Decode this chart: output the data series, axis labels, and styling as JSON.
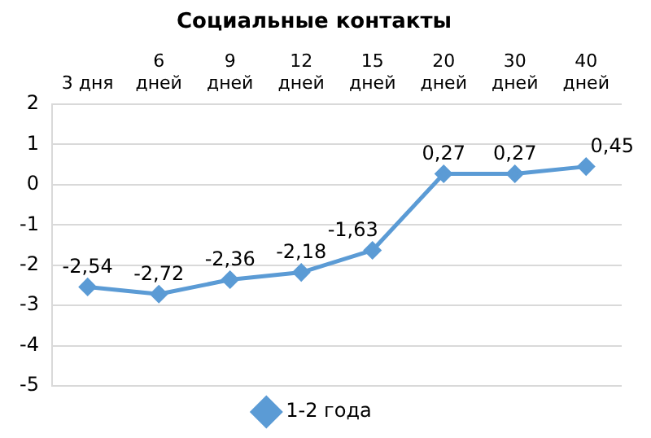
{
  "chart_data": {
    "type": "line",
    "title": "Социальные контакты",
    "categories": [
      "3 дня",
      "6 дней",
      "9 дней",
      "12 дней",
      "15 дней",
      "20 дней",
      "30 дней",
      "40 дней"
    ],
    "series": [
      {
        "name": "1-2 года",
        "color": "#5b9bd5",
        "values": [
          -2.54,
          -2.72,
          -2.36,
          -2.18,
          -1.63,
          0.27,
          0.27,
          0.45
        ],
        "value_labels": [
          "-2,54",
          "-2,72",
          "-2,36",
          "-2,18",
          "-1,63",
          "0,27",
          "0,27",
          "0,45"
        ]
      }
    ],
    "ylim": [
      -5,
      2
    ],
    "yticks": [
      -5,
      -4,
      -3,
      -2,
      -1,
      0,
      1,
      2
    ],
    "grid": "y",
    "legend": "bottom",
    "marker": "diamond",
    "line_style": "solid"
  }
}
